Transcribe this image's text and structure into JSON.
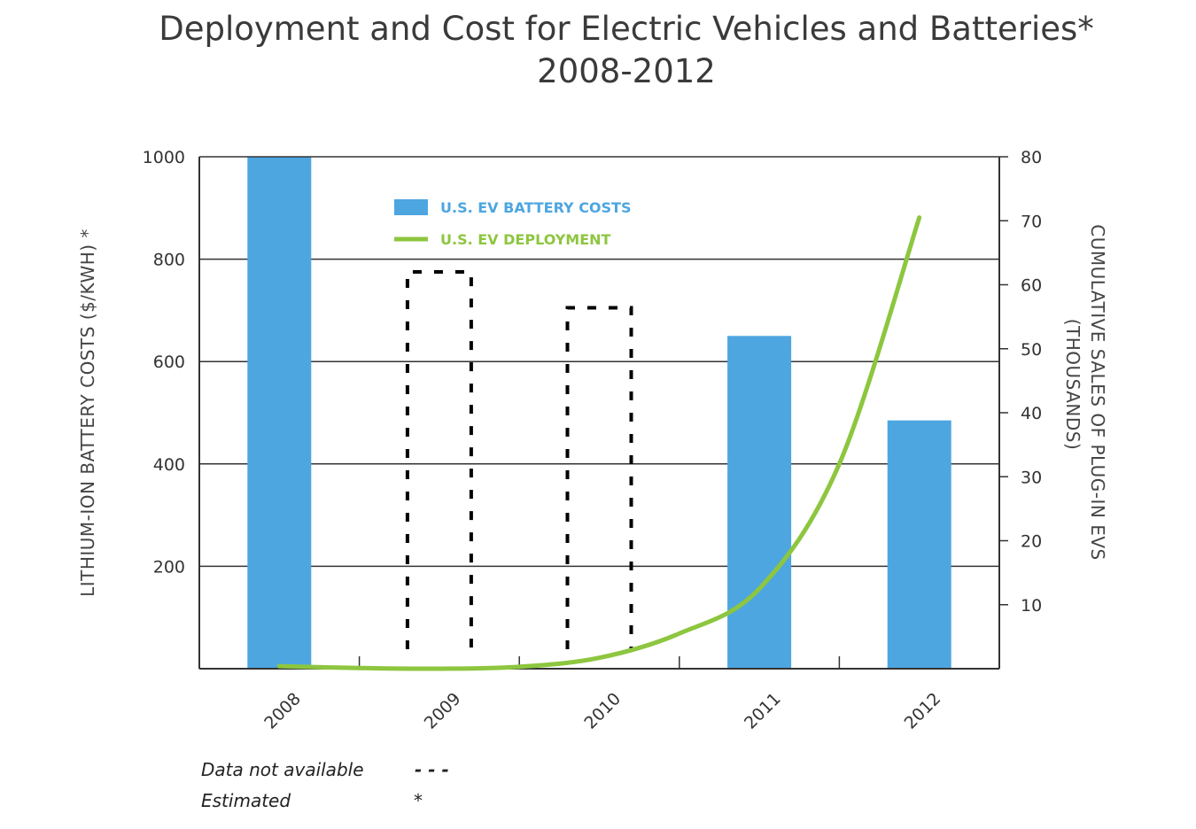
{
  "chart_data": {
    "type": "bar",
    "title": "Deployment and Cost for Electric Vehicles and Batteries*",
    "subtitle": "2008-2012",
    "categories": [
      "2008",
      "2009",
      "2010",
      "2011",
      "2012"
    ],
    "series": [
      {
        "name": "U.S. EV BATTERY COSTS",
        "kind": "bar",
        "axis": "left",
        "values": [
          1000,
          775,
          705,
          650,
          485
        ],
        "status": [
          "actual",
          "not-available",
          "not-available",
          "actual",
          "actual"
        ]
      },
      {
        "name": "U.S. EV DEPLOYMENT",
        "kind": "line",
        "axis": "right",
        "points": [
          {
            "x": 2008.0,
            "y": 0.4
          },
          {
            "x": 2008.5,
            "y": 0.1
          },
          {
            "x": 2009.0,
            "y": 0.0
          },
          {
            "x": 2009.5,
            "y": 0.3
          },
          {
            "x": 2010.0,
            "y": 1.7
          },
          {
            "x": 2010.5,
            "y": 5.5
          },
          {
            "x": 2011.0,
            "y": 12.5
          },
          {
            "x": 2011.5,
            "y": 32.0
          },
          {
            "x": 2012.0,
            "y": 70.5
          }
        ]
      }
    ],
    "ylabel": "LITHIUM-ION BATTERY COSTS ($/KWH) *",
    "y2label_line1": "CUMULATIVE SALES OF PLUG-IN EVS",
    "y2label_line2": "(THOUSANDS)",
    "ylim": [
      0,
      1000
    ],
    "y2lim": [
      0,
      80
    ],
    "yticks": [
      200,
      400,
      600,
      800,
      1000
    ],
    "y2ticks": [
      10,
      20,
      30,
      40,
      50,
      60,
      70,
      80
    ],
    "grid": true,
    "legend_position": "top-left",
    "notes": [
      {
        "label": "Data not available",
        "symbol": "- - -"
      },
      {
        "label": "Estimated",
        "symbol": "*"
      }
    ],
    "colors": {
      "bar": "#4da6e0",
      "line": "#8dc63f",
      "text": "#333333",
      "axis": "#333333"
    }
  }
}
